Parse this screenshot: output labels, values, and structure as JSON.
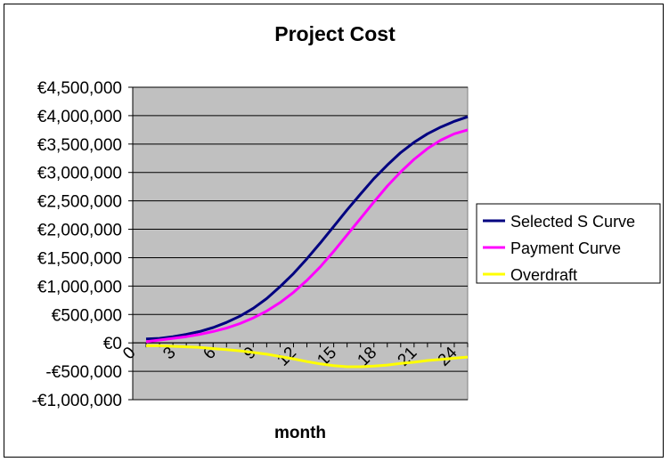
{
  "chart_data": {
    "type": "line",
    "title": "Project Cost",
    "xlabel": "month",
    "ylabel": "",
    "xlim": [
      0,
      25
    ],
    "ylim": [
      -1000000,
      4500000
    ],
    "y_ticks": [
      -1000000,
      -500000,
      0,
      500000,
      1000000,
      1500000,
      2000000,
      2500000,
      3000000,
      3500000,
      4000000,
      4500000
    ],
    "y_tick_labels": [
      "-€1,000,000",
      "-€500,000",
      "€0",
      "€500,000",
      "€1,000,000",
      "€1,500,000",
      "€2,000,000",
      "€2,500,000",
      "€3,000,000",
      "€3,500,000",
      "€4,000,000",
      "€4,500,000"
    ],
    "x_ticks": [
      0,
      3,
      6,
      9,
      12,
      15,
      18,
      21,
      24
    ],
    "x_tick_labels": [
      "0",
      "3",
      "6",
      "9",
      "12",
      "15",
      "18",
      "21",
      "24"
    ],
    "grid": true,
    "plot_background": "#c0c0c0",
    "legend_position": "right",
    "series": [
      {
        "name": "Selected S Curve",
        "color": "#000080",
        "x": [
          1,
          2,
          3,
          4,
          5,
          6,
          7,
          8,
          9,
          10,
          11,
          12,
          13,
          14,
          15,
          16,
          17,
          18,
          19,
          20,
          21,
          22,
          23,
          24,
          25
        ],
        "values": [
          70000,
          80000,
          110000,
          150000,
          200000,
          270000,
          360000,
          470000,
          610000,
          780000,
          990000,
          1220000,
          1480000,
          1760000,
          2050000,
          2340000,
          2620000,
          2890000,
          3130000,
          3350000,
          3530000,
          3680000,
          3800000,
          3900000,
          3980000
        ]
      },
      {
        "name": "Payment Curve",
        "color": "#ff00ff",
        "x": [
          1,
          2,
          3,
          4,
          5,
          6,
          7,
          8,
          9,
          10,
          11,
          12,
          13,
          14,
          15,
          16,
          17,
          18,
          19,
          20,
          21,
          22,
          23,
          24,
          25
        ],
        "values": [
          20000,
          50000,
          80000,
          110000,
          150000,
          200000,
          260000,
          340000,
          440000,
          560000,
          710000,
          890000,
          1100000,
          1340000,
          1610000,
          1900000,
          2190000,
          2480000,
          2760000,
          3010000,
          3230000,
          3420000,
          3570000,
          3680000,
          3750000
        ]
      },
      {
        "name": "Overdraft",
        "color": "#ffff00",
        "x": [
          1,
          2,
          3,
          4,
          5,
          6,
          7,
          8,
          9,
          10,
          11,
          12,
          13,
          14,
          15,
          16,
          17,
          18,
          19,
          20,
          21,
          22,
          23,
          24,
          25
        ],
        "values": [
          -50000,
          -50000,
          -60000,
          -70000,
          -80000,
          -100000,
          -120000,
          -140000,
          -170000,
          -200000,
          -240000,
          -280000,
          -330000,
          -370000,
          -400000,
          -420000,
          -420000,
          -410000,
          -390000,
          -360000,
          -340000,
          -310000,
          -290000,
          -270000,
          -250000
        ]
      }
    ]
  }
}
